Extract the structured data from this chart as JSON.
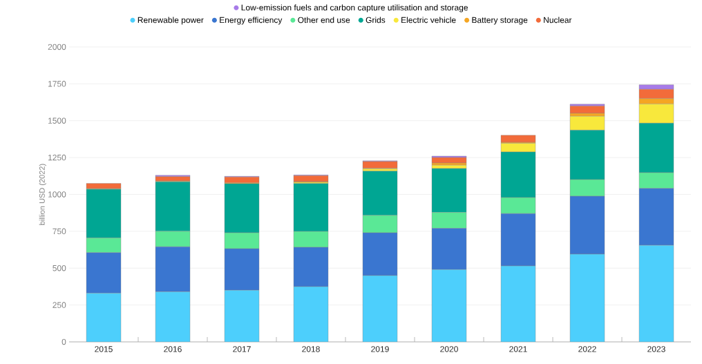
{
  "chart_data": {
    "type": "bar",
    "stacked": true,
    "ylabel": "billion USD (2022)",
    "categories": [
      "2015",
      "2016",
      "2017",
      "2018",
      "2019",
      "2020",
      "2021",
      "2022",
      "2023"
    ],
    "series": [
      {
        "name": "Renewable power",
        "color": "#4dcffc",
        "values": [
          330,
          340,
          350,
          375,
          450,
          490,
          515,
          595,
          655
        ]
      },
      {
        "name": "Energy efficiency",
        "color": "#3a76d0",
        "values": [
          275,
          305,
          282,
          267,
          290,
          280,
          355,
          393,
          386
        ]
      },
      {
        "name": "Other end use",
        "color": "#5ae896",
        "values": [
          100,
          105,
          108,
          107,
          118,
          108,
          109,
          113,
          107
        ]
      },
      {
        "name": "Grids",
        "color": "#00a693",
        "values": [
          330,
          335,
          333,
          325,
          300,
          298,
          309,
          335,
          335
        ]
      },
      {
        "name": "Electric vehicle",
        "color": "#f8e83c",
        "values": [
          2,
          3,
          null,
          8,
          15,
          22,
          59,
          94,
          130
        ]
      },
      {
        "name": "Battery storage",
        "color": "#f5a623",
        "values": [
          3,
          3,
          5,
          5,
          5,
          15,
          6,
          20,
          37
        ]
      },
      {
        "name": "Nuclear",
        "color": "#f26b3a",
        "values": [
          35,
          30,
          40,
          40,
          45,
          37,
          48,
          50,
          63
        ]
      },
      {
        "name": "Low-emission fuels and carbon capture utilisation and storage",
        "color": "#a77be8",
        "values": [
          null,
          9,
          5,
          5,
          5,
          10,
          null,
          12,
          31
        ]
      }
    ],
    "ylim": [
      0,
      2000
    ],
    "yticks": [
      0,
      250,
      500,
      750,
      1000,
      1250,
      1500,
      1750,
      2000
    ],
    "grid": "y",
    "legend": "top"
  }
}
